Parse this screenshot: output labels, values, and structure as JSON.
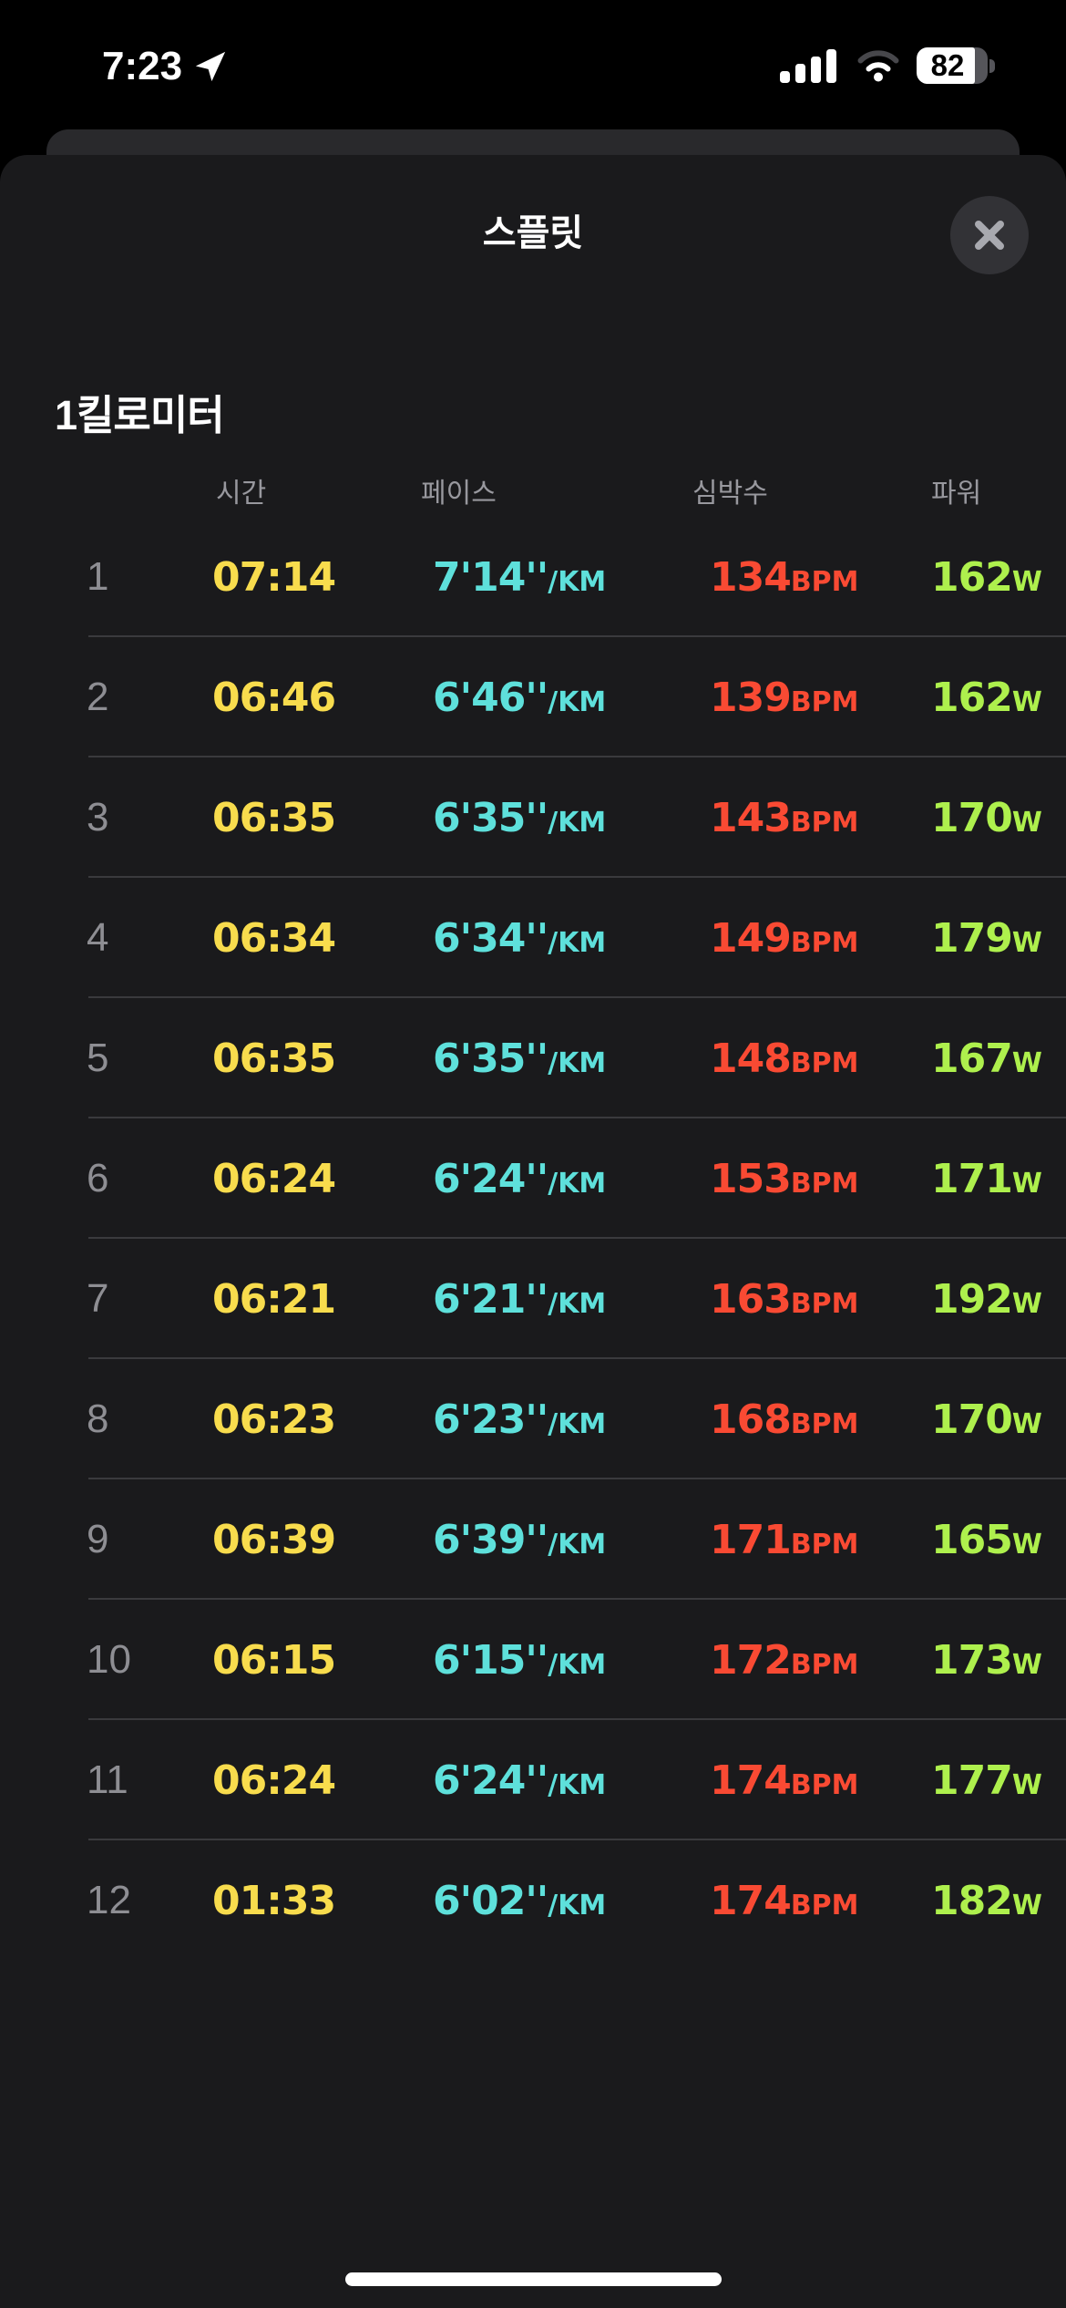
{
  "status_bar": {
    "time": "7:23",
    "battery_percent": "82",
    "cellular_bars": 4,
    "wifi_strength": "2of3",
    "location_active": true
  },
  "modal": {
    "title": "스플릿"
  },
  "section_title": "1킬로미터",
  "table": {
    "headers": [
      "시간",
      "페이스",
      "심박수",
      "파워"
    ],
    "rows": [
      {
        "num": "1",
        "time": "07:14",
        "pace": "7'14''",
        "pace_unit": "/KM",
        "bpm": "134",
        "bpm_unit": "BPM",
        "power": "162",
        "power_unit": "W"
      },
      {
        "num": "2",
        "time": "06:46",
        "pace": "6'46''",
        "pace_unit": "/KM",
        "bpm": "139",
        "bpm_unit": "BPM",
        "power": "162",
        "power_unit": "W"
      },
      {
        "num": "3",
        "time": "06:35",
        "pace": "6'35''",
        "pace_unit": "/KM",
        "bpm": "143",
        "bpm_unit": "BPM",
        "power": "170",
        "power_unit": "W"
      },
      {
        "num": "4",
        "time": "06:34",
        "pace": "6'34''",
        "pace_unit": "/KM",
        "bpm": "149",
        "bpm_unit": "BPM",
        "power": "179",
        "power_unit": "W"
      },
      {
        "num": "5",
        "time": "06:35",
        "pace": "6'35''",
        "pace_unit": "/KM",
        "bpm": "148",
        "bpm_unit": "BPM",
        "power": "167",
        "power_unit": "W"
      },
      {
        "num": "6",
        "time": "06:24",
        "pace": "6'24''",
        "pace_unit": "/KM",
        "bpm": "153",
        "bpm_unit": "BPM",
        "power": "171",
        "power_unit": "W"
      },
      {
        "num": "7",
        "time": "06:21",
        "pace": "6'21''",
        "pace_unit": "/KM",
        "bpm": "163",
        "bpm_unit": "BPM",
        "power": "192",
        "power_unit": "W"
      },
      {
        "num": "8",
        "time": "06:23",
        "pace": "6'23''",
        "pace_unit": "/KM",
        "bpm": "168",
        "bpm_unit": "BPM",
        "power": "170",
        "power_unit": "W"
      },
      {
        "num": "9",
        "time": "06:39",
        "pace": "6'39''",
        "pace_unit": "/KM",
        "bpm": "171",
        "bpm_unit": "BPM",
        "power": "165",
        "power_unit": "W"
      },
      {
        "num": "10",
        "time": "06:15",
        "pace": "6'15''",
        "pace_unit": "/KM",
        "bpm": "172",
        "bpm_unit": "BPM",
        "power": "173",
        "power_unit": "W"
      },
      {
        "num": "11",
        "time": "06:24",
        "pace": "6'24''",
        "pace_unit": "/KM",
        "bpm": "174",
        "bpm_unit": "BPM",
        "power": "177",
        "power_unit": "W"
      },
      {
        "num": "12",
        "time": "01:33",
        "pace": "6'02''",
        "pace_unit": "/KM",
        "bpm": "174",
        "bpm_unit": "BPM",
        "power": "182",
        "power_unit": "W"
      }
    ]
  },
  "colors": {
    "time": "#f8dc4d",
    "pace": "#5ee0db",
    "bpm": "#f94a33",
    "power": "#aef04d",
    "num": "#8e8e93",
    "header": "#98989e"
  }
}
